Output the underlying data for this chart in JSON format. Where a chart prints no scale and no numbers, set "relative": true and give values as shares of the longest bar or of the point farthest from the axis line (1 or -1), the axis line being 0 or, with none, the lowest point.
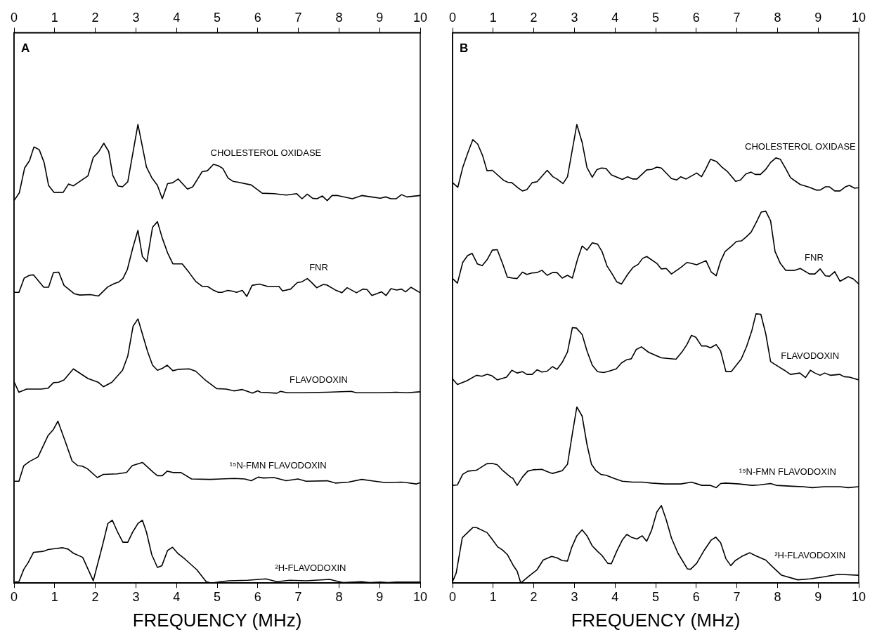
{
  "chart_data": [
    {
      "type": "line",
      "relative": true,
      "xlabel": "FREQUENCY (MHz)",
      "xlim": [
        0,
        10
      ],
      "xticks": [
        0,
        1,
        2,
        3,
        4,
        5,
        6,
        7,
        8,
        9,
        10
      ],
      "x2lim": [
        0,
        10
      ],
      "x2ticks": [
        0,
        1,
        2,
        3,
        4,
        5,
        6,
        7,
        8,
        9,
        10
      ],
      "tick_labels": "x",
      "annotations": [
        "A"
      ],
      "series": [
        {
          "name": "CHOLESTEROL OXIDASE",
          "color": "#000000",
          "x": [
            0,
            0.13,
            0.26,
            0.38,
            0.49,
            0.62,
            0.74,
            0.85,
            0.98,
            1.21,
            1.34,
            1.46,
            1.82,
            1.95,
            2.08,
            2.21,
            2.33,
            2.43,
            2.56,
            2.67,
            2.8,
            3.05,
            3.26,
            3.39,
            3.53,
            3.65,
            3.78,
            3.91,
            4.04,
            4.27,
            4.4,
            4.63,
            4.76,
            4.91,
            5.03,
            5.14,
            5.27,
            5.39,
            5.52,
            5.84,
            6.11,
            6.4,
            6.7,
            6.96,
            7.09,
            7.22,
            7.35,
            7.46,
            7.59,
            7.71,
            7.83,
            7.97,
            8.33,
            8.56,
            8.79,
            9.02,
            9.15,
            9.28,
            9.41,
            9.54,
            9.67,
            10
          ],
          "values": [
            0.834,
            0.851,
            0.905,
            0.921,
            0.951,
            0.945,
            0.917,
            0.867,
            0.852,
            0.852,
            0.87,
            0.866,
            0.888,
            0.928,
            0.94,
            0.959,
            0.941,
            0.889,
            0.866,
            0.864,
            0.875,
            1,
            0.907,
            0.884,
            0.867,
            0.838,
            0.871,
            0.873,
            0.881,
            0.859,
            0.864,
            0.897,
            0.899,
            0.913,
            0.91,
            0.904,
            0.883,
            0.876,
            0.874,
            0.868,
            0.85,
            0.849,
            0.846,
            0.849,
            0.838,
            0.848,
            0.839,
            0.838,
            0.844,
            0.834,
            0.845,
            0.845,
            0.838,
            0.845,
            0.842,
            0.839,
            0.842,
            0.838,
            0.838,
            0.847,
            0.842,
            0.845
          ]
        },
        {
          "name": "FNR",
          "color": "#000000",
          "x": [
            0,
            0.12,
            0.25,
            0.38,
            0.48,
            0.73,
            0.85,
            0.97,
            1.1,
            1.23,
            1.48,
            1.62,
            1.88,
            2.08,
            2.31,
            2.47,
            2.57,
            2.68,
            2.79,
            2.93,
            3.05,
            3.16,
            3.27,
            3.41,
            3.53,
            3.65,
            3.78,
            3.91,
            4.14,
            4.31,
            4.47,
            4.63,
            4.76,
            4.9,
            5.03,
            5.12,
            5.26,
            5.35,
            5.48,
            5.62,
            5.73,
            5.86,
            6.04,
            6.24,
            6.52,
            6.61,
            6.81,
            6.97,
            7.09,
            7.22,
            7.32,
            7.45,
            7.61,
            7.7,
            7.91,
            8.07,
            8.2,
            8.43,
            8.59,
            8.69,
            8.81,
            9.05,
            9.16,
            9.28,
            9.42,
            9.54,
            9.64,
            9.77,
            10
          ],
          "values": [
            0.634,
            0.634,
            0.665,
            0.671,
            0.672,
            0.645,
            0.645,
            0.677,
            0.678,
            0.649,
            0.631,
            0.628,
            0.629,
            0.626,
            0.646,
            0.653,
            0.656,
            0.664,
            0.684,
            0.733,
            0.769,
            0.712,
            0.701,
            0.776,
            0.788,
            0.752,
            0.72,
            0.696,
            0.696,
            0.677,
            0.658,
            0.647,
            0.647,
            0.639,
            0.634,
            0.634,
            0.638,
            0.637,
            0.634,
            0.638,
            0.625,
            0.649,
            0.652,
            0.647,
            0.647,
            0.637,
            0.641,
            0.655,
            0.657,
            0.664,
            0.656,
            0.644,
            0.651,
            0.65,
            0.639,
            0.633,
            0.644,
            0.633,
            0.641,
            0.64,
            0.627,
            0.635,
            0.627,
            0.642,
            0.639,
            0.641,
            0.635,
            0.645,
            0.633
          ]
        },
        {
          "name": "FLAVODOXIN",
          "color": "#000000",
          "x": [
            0,
            0.12,
            0.31,
            0.67,
            0.84,
            0.97,
            1.1,
            1.23,
            1.46,
            1.82,
            2.07,
            2.2,
            2.41,
            2.67,
            2.8,
            2.93,
            3.05,
            3.18,
            3.29,
            3.41,
            3.53,
            3.65,
            3.77,
            3.91,
            4.04,
            4.31,
            4.47,
            4.73,
            4.99,
            5.22,
            5.41,
            5.62,
            5.87,
            6,
            6.07,
            6.47,
            6.56,
            6.73,
            7.06,
            7.71,
            8.3,
            8.43,
            9.02,
            9.41,
            9.67,
            10
          ],
          "values": [
            0.439,
            0.416,
            0.423,
            0.423,
            0.425,
            0.437,
            0.438,
            0.443,
            0.467,
            0.446,
            0.438,
            0.428,
            0.438,
            0.464,
            0.495,
            0.56,
            0.576,
            0.537,
            0.504,
            0.475,
            0.464,
            0.468,
            0.475,
            0.463,
            0.466,
            0.467,
            0.462,
            0.441,
            0.424,
            0.423,
            0.419,
            0.422,
            0.414,
            0.419,
            0.416,
            0.414,
            0.418,
            0.415,
            0.415,
            0.416,
            0.418,
            0.415,
            0.415,
            0.416,
            0.415,
            0.417
          ]
        },
        {
          "name": "¹⁵N-FMN FLAVODOXIN",
          "color": "#000000",
          "x": [
            0,
            0.12,
            0.24,
            0.38,
            0.59,
            0.84,
            0.97,
            1.08,
            1.26,
            1.43,
            1.57,
            1.68,
            1.81,
            2.05,
            2.2,
            2.54,
            2.77,
            2.91,
            3.16,
            3.42,
            3.53,
            3.65,
            3.77,
            3.91,
            4.11,
            4.37,
            4.83,
            5.09,
            5.42,
            5.68,
            5.84,
            6.01,
            6.14,
            6.4,
            6.7,
            6.99,
            7.19,
            7.71,
            7.91,
            8.23,
            8.56,
            8.79,
            9.15,
            9.54,
            9.67,
            9.9,
            10
          ],
          "values": [
            0.222,
            0.222,
            0.256,
            0.265,
            0.275,
            0.322,
            0.335,
            0.353,
            0.309,
            0.266,
            0.256,
            0.255,
            0.249,
            0.23,
            0.237,
            0.238,
            0.241,
            0.256,
            0.263,
            0.242,
            0.234,
            0.234,
            0.244,
            0.241,
            0.241,
            0.227,
            0.226,
            0.227,
            0.228,
            0.227,
            0.223,
            0.231,
            0.229,
            0.23,
            0.223,
            0.227,
            0.222,
            0.223,
            0.218,
            0.22,
            0.226,
            0.223,
            0.219,
            0.22,
            0.219,
            0.216,
            0.219
          ]
        },
        {
          "name": "²H-FLAVODOXIN",
          "color": "#000000",
          "x": [
            0,
            0.12,
            0.24,
            0.35,
            0.48,
            0.71,
            0.84,
            1,
            1.2,
            1.33,
            1.46,
            1.69,
            1.95,
            2.18,
            2.31,
            2.42,
            2.55,
            2.68,
            2.8,
            2.92,
            3.05,
            3.16,
            3.26,
            3.39,
            3.53,
            3.64,
            3.78,
            3.9,
            4.04,
            4.21,
            4.5,
            4.73,
            4.86,
            5.09,
            5.29,
            5.75,
            6.2,
            6.47,
            6.79,
            7.19,
            7.77,
            7.91,
            8.1,
            8.36,
            8.56,
            8.76,
            9.02,
            9.21,
            9.41,
            9.67,
            10
          ],
          "values": [
            0.002,
            0.003,
            0.03,
            0.045,
            0.067,
            0.069,
            0.073,
            0.075,
            0.077,
            0.074,
            0.065,
            0.056,
            0.005,
            0.083,
            0.13,
            0.137,
            0.111,
            0.089,
            0.089,
            0.111,
            0.13,
            0.137,
            0.111,
            0.062,
            0.034,
            0.038,
            0.071,
            0.078,
            0.064,
            0.052,
            0.029,
            0.003,
            0,
            0.003,
            0.005,
            0.006,
            0.009,
            0.003,
            0.006,
            0.005,
            0.008,
            0.005,
            0.001,
            0.002,
            0.003,
            0.001,
            0.002,
            0.001,
            0.002,
            0.002,
            0.002
          ]
        }
      ]
    },
    {
      "type": "line",
      "relative": true,
      "xlabel": "FREQUENCY (MHz)",
      "xlim": [
        0,
        10
      ],
      "xticks": [
        0,
        1,
        2,
        3,
        4,
        5,
        6,
        7,
        8,
        9,
        10
      ],
      "x2lim": [
        0,
        10
      ],
      "x2ticks": [
        0,
        1,
        2,
        3,
        4,
        5,
        6,
        7,
        8,
        9,
        10
      ],
      "tick_labels": "x",
      "annotations": [
        "B"
      ],
      "series": [
        {
          "name": "CHOLESTEROL OXIDASE",
          "color": "#000000",
          "x": [
            0,
            0.13,
            0.25,
            0.38,
            0.5,
            0.62,
            0.74,
            0.85,
            0.98,
            1.26,
            1.36,
            1.46,
            1.61,
            1.72,
            1.83,
            1.96,
            2.08,
            2.33,
            2.47,
            2.57,
            2.72,
            2.83,
            3.06,
            3.19,
            3.31,
            3.44,
            3.55,
            3.66,
            3.78,
            3.91,
            4.18,
            4.31,
            4.44,
            4.54,
            4.78,
            4.9,
            5.03,
            5.14,
            5.39,
            5.52,
            5.62,
            5.75,
            6.01,
            6.13,
            6.24,
            6.35,
            6.5,
            6.62,
            6.76,
            6.97,
            7.09,
            7.22,
            7.35,
            7.45,
            7.58,
            7.71,
            7.83,
            7.96,
            8.07,
            8.2,
            8.32,
            8.56,
            8.79,
            8.95,
            9.05,
            9.18,
            9.28,
            9.41,
            9.54,
            9.67,
            9.77,
            9.9,
            10
          ],
          "values": [
            0.873,
            0.863,
            0.906,
            0.939,
            0.967,
            0.957,
            0.932,
            0.899,
            0.9,
            0.878,
            0.874,
            0.873,
            0.862,
            0.855,
            0.858,
            0.873,
            0.875,
            0.9,
            0.886,
            0.881,
            0.871,
            0.886,
            1,
            0.961,
            0.906,
            0.885,
            0.901,
            0.905,
            0.904,
            0.89,
            0.88,
            0.886,
            0.881,
            0.881,
            0.901,
            0.902,
            0.907,
            0.905,
            0.882,
            0.879,
            0.886,
            0.881,
            0.894,
            0.886,
            0.904,
            0.924,
            0.919,
            0.908,
            0.898,
            0.876,
            0.879,
            0.892,
            0.896,
            0.891,
            0.891,
            0.902,
            0.917,
            0.927,
            0.924,
            0.904,
            0.884,
            0.869,
            0.863,
            0.857,
            0.857,
            0.864,
            0.864,
            0.855,
            0.855,
            0.864,
            0.867,
            0.861,
            0.862
          ]
        },
        {
          "name": "FNR",
          "color": "#000000",
          "x": [
            0,
            0.12,
            0.25,
            0.37,
            0.48,
            0.61,
            0.73,
            0.85,
            0.98,
            1.1,
            1.23,
            1.35,
            1.48,
            1.59,
            1.72,
            1.83,
            1.95,
            2.08,
            2.2,
            2.33,
            2.46,
            2.57,
            2.7,
            2.83,
            2.95,
            3.08,
            3.19,
            3.31,
            3.44,
            3.57,
            3.68,
            3.8,
            3.93,
            4.04,
            4.16,
            4.31,
            4.44,
            4.57,
            4.68,
            4.78,
            5.03,
            5.14,
            5.26,
            5.39,
            5.62,
            5.77,
            5.88,
            6.01,
            6.24,
            6.37,
            6.49,
            6.6,
            6.71,
            6.86,
            6.99,
            7.11,
            7.22,
            7.35,
            7.48,
            7.6,
            7.71,
            7.83,
            7.94,
            8.07,
            8.2,
            8.43,
            8.56,
            8.79,
            8.92,
            9.05,
            9.18,
            9.28,
            9.41,
            9.54,
            9.74,
            9.87,
            10
          ],
          "values": [
            0.664,
            0.654,
            0.699,
            0.714,
            0.719,
            0.696,
            0.692,
            0.705,
            0.726,
            0.727,
            0.697,
            0.667,
            0.665,
            0.664,
            0.678,
            0.673,
            0.676,
            0.677,
            0.682,
            0.671,
            0.677,
            0.677,
            0.665,
            0.671,
            0.665,
            0.707,
            0.735,
            0.726,
            0.742,
            0.739,
            0.723,
            0.692,
            0.674,
            0.657,
            0.652,
            0.673,
            0.688,
            0.695,
            0.708,
            0.712,
            0.697,
            0.685,
            0.686,
            0.674,
            0.688,
            0.699,
            0.697,
            0.694,
            0.703,
            0.678,
            0.67,
            0.702,
            0.723,
            0.734,
            0.745,
            0.746,
            0.754,
            0.765,
            0.787,
            0.809,
            0.811,
            0.79,
            0.723,
            0.697,
            0.682,
            0.682,
            0.686,
            0.674,
            0.674,
            0.685,
            0.67,
            0.669,
            0.679,
            0.658,
            0.668,
            0.663,
            0.652
          ]
        },
        {
          "name": "FLAVODOXIN",
          "color": "#000000",
          "x": [
            0,
            0.12,
            0.35,
            0.59,
            0.72,
            0.85,
            0.97,
            1.1,
            1.33,
            1.46,
            1.59,
            1.72,
            1.83,
            1.96,
            2.08,
            2.2,
            2.33,
            2.46,
            2.57,
            2.7,
            2.83,
            2.95,
            3.05,
            3.19,
            3.31,
            3.44,
            3.57,
            3.72,
            3.85,
            4.03,
            4.16,
            4.29,
            4.4,
            4.52,
            4.65,
            4.83,
            5.14,
            5.5,
            5.65,
            5.77,
            5.88,
            5.99,
            6.13,
            6.24,
            6.35,
            6.49,
            6.6,
            6.73,
            6.86,
            7.11,
            7.24,
            7.37,
            7.47,
            7.59,
            7.71,
            7.83,
            8.04,
            8.17,
            8.32,
            8.55,
            8.69,
            8.81,
            8.92,
            9.05,
            9.16,
            9.31,
            9.53,
            9.64,
            9.77,
            10
          ],
          "values": [
            0.445,
            0.433,
            0.441,
            0.453,
            0.451,
            0.455,
            0.452,
            0.443,
            0.449,
            0.464,
            0.458,
            0.461,
            0.455,
            0.455,
            0.465,
            0.46,
            0.462,
            0.472,
            0.466,
            0.481,
            0.504,
            0.557,
            0.556,
            0.542,
            0.506,
            0.475,
            0.461,
            0.459,
            0.462,
            0.467,
            0.48,
            0.487,
            0.489,
            0.509,
            0.515,
            0.503,
            0.491,
            0.488,
            0.504,
            0.52,
            0.54,
            0.536,
            0.517,
            0.517,
            0.513,
            0.52,
            0.506,
            0.461,
            0.461,
            0.489,
            0.516,
            0.551,
            0.587,
            0.586,
            0.544,
            0.483,
            0.471,
            0.464,
            0.455,
            0.458,
            0.448,
            0.464,
            0.458,
            0.453,
            0.458,
            0.453,
            0.455,
            0.45,
            0.449,
            0.443
          ]
        },
        {
          "name": "¹⁵N-FMN FLAVODOXIN",
          "color": "#000000",
          "x": [
            0,
            0.12,
            0.25,
            0.38,
            0.59,
            0.84,
            0.97,
            1.1,
            1.24,
            1.43,
            1.48,
            1.59,
            1.72,
            1.85,
            1.98,
            2.2,
            2.33,
            2.46,
            2.7,
            2.83,
            2.95,
            3.06,
            3.19,
            3.31,
            3.42,
            3.53,
            3.65,
            3.78,
            3.98,
            4.18,
            4.44,
            4.67,
            4.9,
            5.22,
            5.62,
            5.88,
            6.14,
            6.34,
            6.49,
            6.6,
            6.73,
            7.06,
            7.37,
            7.55,
            7.83,
            7.97,
            8.36,
            8.63,
            8.86,
            9.15,
            9.54,
            9.74,
            10
          ],
          "values": [
            0.213,
            0.214,
            0.237,
            0.244,
            0.246,
            0.26,
            0.261,
            0.258,
            0.245,
            0.231,
            0.229,
            0.213,
            0.231,
            0.244,
            0.247,
            0.248,
            0.243,
            0.239,
            0.245,
            0.259,
            0.326,
            0.384,
            0.364,
            0.302,
            0.259,
            0.245,
            0.237,
            0.235,
            0.228,
            0.222,
            0.22,
            0.22,
            0.218,
            0.216,
            0.216,
            0.22,
            0.213,
            0.213,
            0.208,
            0.217,
            0.218,
            0.216,
            0.213,
            0.214,
            0.217,
            0.213,
            0.211,
            0.21,
            0.208,
            0.21,
            0.21,
            0.208,
            0.21
          ]
        },
        {
          "name": "²H-FLAVODOXIN",
          "color": "#000000",
          "x": [
            0,
            0.09,
            0.24,
            0.37,
            0.5,
            0.59,
            0.85,
            0.97,
            1.11,
            1.23,
            1.35,
            1.49,
            1.59,
            1.68,
            1.88,
            2.08,
            2.23,
            2.44,
            2.57,
            2.7,
            2.83,
            2.93,
            3.06,
            3.19,
            3.31,
            3.44,
            3.57,
            3.68,
            3.82,
            3.91,
            4.04,
            4.18,
            4.29,
            4.4,
            4.54,
            4.67,
            4.78,
            4.9,
            5.03,
            5.14,
            5.26,
            5.39,
            5.55,
            5.78,
            5.86,
            6.01,
            6.2,
            6.37,
            6.48,
            6.6,
            6.73,
            6.85,
            6.96,
            7.12,
            7.32,
            7.45,
            7.58,
            7.71,
            7.87,
            8.1,
            8.5,
            8.8,
            9.1,
            9.5,
            10
          ],
          "values": [
            0.003,
            0.022,
            0.099,
            0.11,
            0.121,
            0.121,
            0.11,
            0.096,
            0.079,
            0.072,
            0.062,
            0.039,
            0.026,
            0,
            0.015,
            0.029,
            0.05,
            0.058,
            0.055,
            0.049,
            0.048,
            0.077,
            0.103,
            0.116,
            0.103,
            0.081,
            0.069,
            0.06,
            0.043,
            0.042,
            0.069,
            0.094,
            0.106,
            0.1,
            0.096,
            0.103,
            0.091,
            0.115,
            0.155,
            0.169,
            0.138,
            0.098,
            0.065,
            0.031,
            0.03,
            0.043,
            0.072,
            0.094,
            0.1,
            0.088,
            0.053,
            0.038,
            0.049,
            0.058,
            0.066,
            0.06,
            0.055,
            0.05,
            0.036,
            0.017,
            0.007,
            0.009,
            0.013,
            0.019,
            0.017
          ]
        }
      ]
    }
  ]
}
